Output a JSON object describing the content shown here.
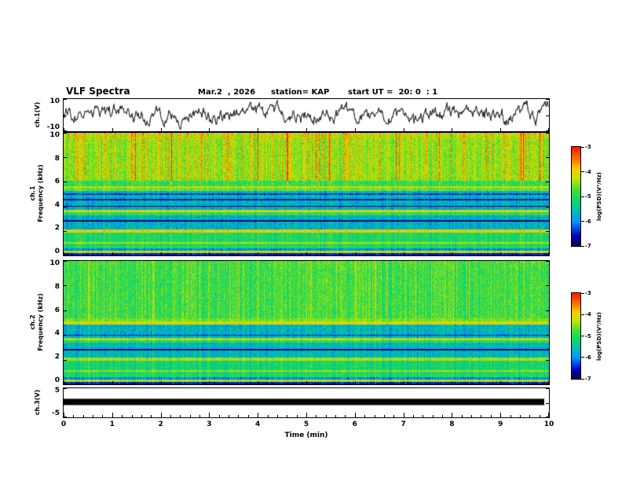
{
  "header": {
    "title": "VLF Spectra",
    "date": "Mar.2  , 2026",
    "station": "station= KAP",
    "start_ut": "start UT =  20: 0  : 1"
  },
  "axes": {
    "x": {
      "label": "Time (min)",
      "range": [
        0,
        10
      ],
      "ticks": [
        0,
        1,
        2,
        3,
        4,
        5,
        6,
        7,
        8,
        9,
        10
      ],
      "minor_step": 0.2
    },
    "ch1": {
      "label": "ch.1(V)",
      "range": [
        -10,
        10
      ],
      "tick_labels": [
        10,
        -10
      ],
      "tick_marks": [
        10,
        0,
        -10
      ]
    },
    "spec1": {
      "label_lines": [
        "ch.1",
        "Frequency (kHz)"
      ],
      "range": [
        0,
        10
      ],
      "tick_labels": [
        10,
        8,
        6,
        4,
        2,
        0
      ]
    },
    "spec2": {
      "label_lines": [
        "ch.2",
        "Frequency (kHz)"
      ],
      "range": [
        0,
        10
      ],
      "tick_labels": [
        10,
        8,
        6,
        4,
        2,
        0
      ]
    },
    "ch3": {
      "label": "ch.3(V)",
      "range": [
        -5,
        5
      ],
      "tick_labels": [
        5,
        -5
      ],
      "tick_marks": [
        5,
        0,
        -5
      ]
    }
  },
  "colorbar": {
    "label": "log(PSD)(V²/Hz)",
    "ticks": [
      -3,
      -4,
      -5,
      -6,
      -7
    ],
    "range": [
      -3,
      -7
    ]
  },
  "palette": {
    "background": "#ffffff",
    "frame_color": "#000000",
    "jet_stops": [
      [
        0.0,
        [
          8,
          8,
          60
        ]
      ],
      [
        0.1,
        [
          0,
          0,
          190
        ]
      ],
      [
        0.25,
        [
          0,
          150,
          255
        ]
      ],
      [
        0.42,
        [
          0,
          210,
          130
        ]
      ],
      [
        0.55,
        [
          60,
          220,
          60
        ]
      ],
      [
        0.68,
        [
          190,
          230,
          0
        ]
      ],
      [
        0.78,
        [
          255,
          200,
          0
        ]
      ],
      [
        0.87,
        [
          255,
          120,
          0
        ]
      ],
      [
        1.0,
        [
          255,
          20,
          0
        ]
      ]
    ]
  },
  "noise_seed": 1337,
  "chart_data": [
    {
      "type": "line",
      "id": "ch1_waveform",
      "title": "ch.1(V) time series",
      "xlim": [
        0,
        10
      ],
      "ylim": [
        -10,
        10
      ],
      "yticks": [
        10,
        -10
      ],
      "xlabel": "Time (min)",
      "description": "broadband noisy voltage trace, mean 0 V, typical excursion ±5 V, occasional peaks near ±8 V, black line"
    },
    {
      "type": "heatmap",
      "id": "ch1_spectrogram",
      "ylabel": "Frequency (kHz)",
      "xlim": [
        0,
        10
      ],
      "ylim": [
        0,
        10
      ],
      "zlabel": "log(PSD)(V²/Hz)",
      "zlim": [
        -7,
        -3
      ],
      "top_bias": 0.5,
      "features": "red impulsive vertical streaks above 6 kHz; dark horizontal lines near 2.85, 4.05, 4.6 and 5.0 kHz; enhanced orange bands near 0.3, 1.05, 2.0, 3.65 and 5.6 kHz; blue-cyan quiet bands 2.1-3.3 and 3.75-5.3 kHz; green background",
      "bands": [
        [
          2.8,
          2.9,
          -6.9,
          0.15,
          0
        ],
        [
          4.0,
          4.1,
          -6.9,
          0.15,
          0
        ],
        [
          4.55,
          4.63,
          -6.6,
          0.2,
          0
        ],
        [
          5.0,
          5.07,
          -6.4,
          0.2,
          0
        ],
        [
          0.0,
          0.2,
          -6.6,
          0.3,
          0.2
        ],
        [
          0.2,
          0.4,
          -4.3,
          0.25,
          0.2
        ],
        [
          0.4,
          0.6,
          -6.0,
          0.3,
          0.2
        ],
        [
          0.6,
          1.0,
          -5.1,
          0.35,
          0.3
        ],
        [
          1.0,
          1.12,
          -4.4,
          0.25,
          0.3
        ],
        [
          1.12,
          1.9,
          -5.15,
          0.35,
          0.4
        ],
        [
          1.9,
          2.12,
          -4.1,
          0.3,
          0.3
        ],
        [
          2.12,
          3.3,
          -5.75,
          0.4,
          0.3
        ],
        [
          3.3,
          3.55,
          -5.0,
          0.35,
          0.3
        ],
        [
          3.55,
          3.75,
          -4.2,
          0.3,
          0.3
        ],
        [
          3.75,
          4.35,
          -5.8,
          0.4,
          0.3
        ],
        [
          4.35,
          5.3,
          -5.7,
          0.45,
          0.3
        ],
        [
          5.3,
          5.55,
          -4.7,
          0.35,
          0.4
        ],
        [
          5.55,
          5.7,
          -4.2,
          0.3,
          0.4
        ],
        [
          5.7,
          6.1,
          -5.0,
          0.4,
          0.5
        ],
        [
          6.1,
          10.01,
          -4.55,
          0.45,
          1.6
        ]
      ]
    },
    {
      "type": "heatmap",
      "id": "ch2_spectrogram",
      "ylabel": "Frequency (kHz)",
      "xlim": [
        0,
        10
      ],
      "ylim": [
        0,
        10
      ],
      "zlabel": "log(PSD)(V²/Hz)",
      "zlim": [
        -7,
        -3
      ],
      "top_bias": 0.15,
      "features": "strong orange horizontal band near 5.0 kHz; dark lines near 2.85 and 4.0 kHz; yellow vertical streaks above 5.5 kHz; blue-cyan quiet bands 2.2-3.4 and 3.8-4.9 kHz; green background",
      "bands": [
        [
          2.8,
          2.9,
          -6.8,
          0.15,
          0
        ],
        [
          3.95,
          4.05,
          -6.5,
          0.2,
          0
        ],
        [
          0.0,
          0.2,
          -6.6,
          0.3,
          0.2
        ],
        [
          0.2,
          0.4,
          -4.4,
          0.25,
          0.2
        ],
        [
          0.4,
          0.6,
          -6.0,
          0.3,
          0.2
        ],
        [
          0.6,
          1.05,
          -5.1,
          0.35,
          0.3
        ],
        [
          1.05,
          1.18,
          -4.5,
          0.25,
          0.3
        ],
        [
          1.18,
          1.95,
          -5.2,
          0.35,
          0.3
        ],
        [
          1.95,
          2.2,
          -4.4,
          0.3,
          0.3
        ],
        [
          2.2,
          3.4,
          -5.65,
          0.4,
          0.3
        ],
        [
          3.4,
          3.6,
          -5.0,
          0.35,
          0.3
        ],
        [
          3.6,
          3.8,
          -4.4,
          0.3,
          0.3
        ],
        [
          3.8,
          4.9,
          -5.7,
          0.45,
          0.3
        ],
        [
          4.9,
          5.1,
          -4.15,
          0.25,
          0.2
        ],
        [
          5.1,
          5.4,
          -4.6,
          0.3,
          0.3
        ],
        [
          5.4,
          10.01,
          -4.95,
          0.45,
          0.9
        ]
      ]
    },
    {
      "type": "line",
      "id": "ch3_trace",
      "title": "ch.3(V) time series",
      "xlim": [
        0,
        10
      ],
      "ylim": [
        -5,
        5
      ],
      "yticks": [
        5,
        -5
      ],
      "value": 0.3,
      "description": "flat saturated trace at ≈ +0.3 V drawn as a thick solid black bar spanning 0 to ~9.9 min"
    }
  ]
}
